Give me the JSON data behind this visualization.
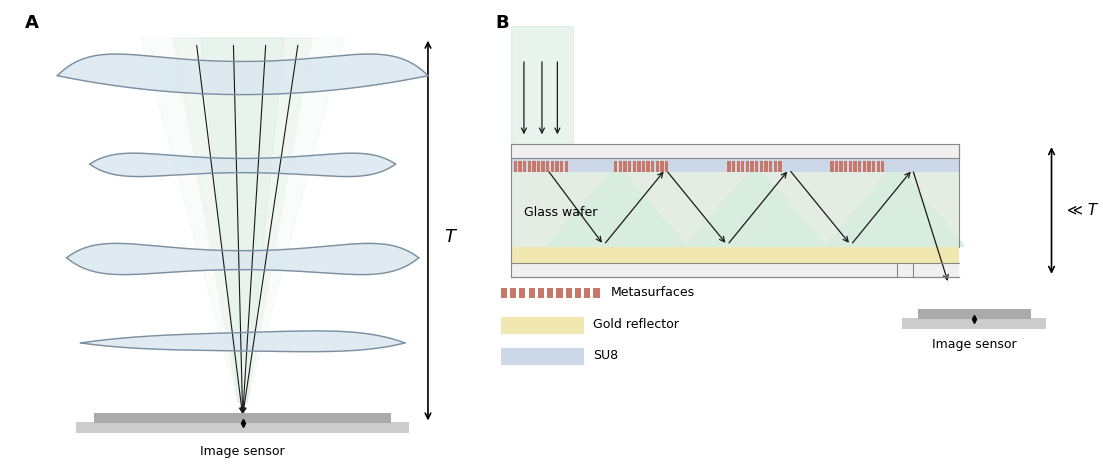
{
  "fig_width": 11.03,
  "fig_height": 4.73,
  "bg_color": "#ffffff",
  "label_A": "A",
  "label_B": "B",
  "lens_color_light": "#dce8f0",
  "lens_color_mid": "#c0d0e0",
  "lens_edge_color": "#7a8fa0",
  "green_beam_color": "#d8ece0",
  "sensor_color": "#aaaaaa",
  "sensor_color2": "#cccccc",
  "glass_fill": "#e4ede4",
  "gold_color": "#f0e8b0",
  "su8_color": "#ccd8e8",
  "meta_color": "#c87868",
  "arrow_color": "#1a1a1a",
  "border_color": "#e0e0e0",
  "T_label": "T",
  "Tsmall_label": "≪ T",
  "glass_label": "Glass wafer",
  "sensor_label": "Image sensor",
  "legend_meta": "Metasurfaces",
  "legend_gold": "Gold reflector",
  "legend_su8": "SU8"
}
